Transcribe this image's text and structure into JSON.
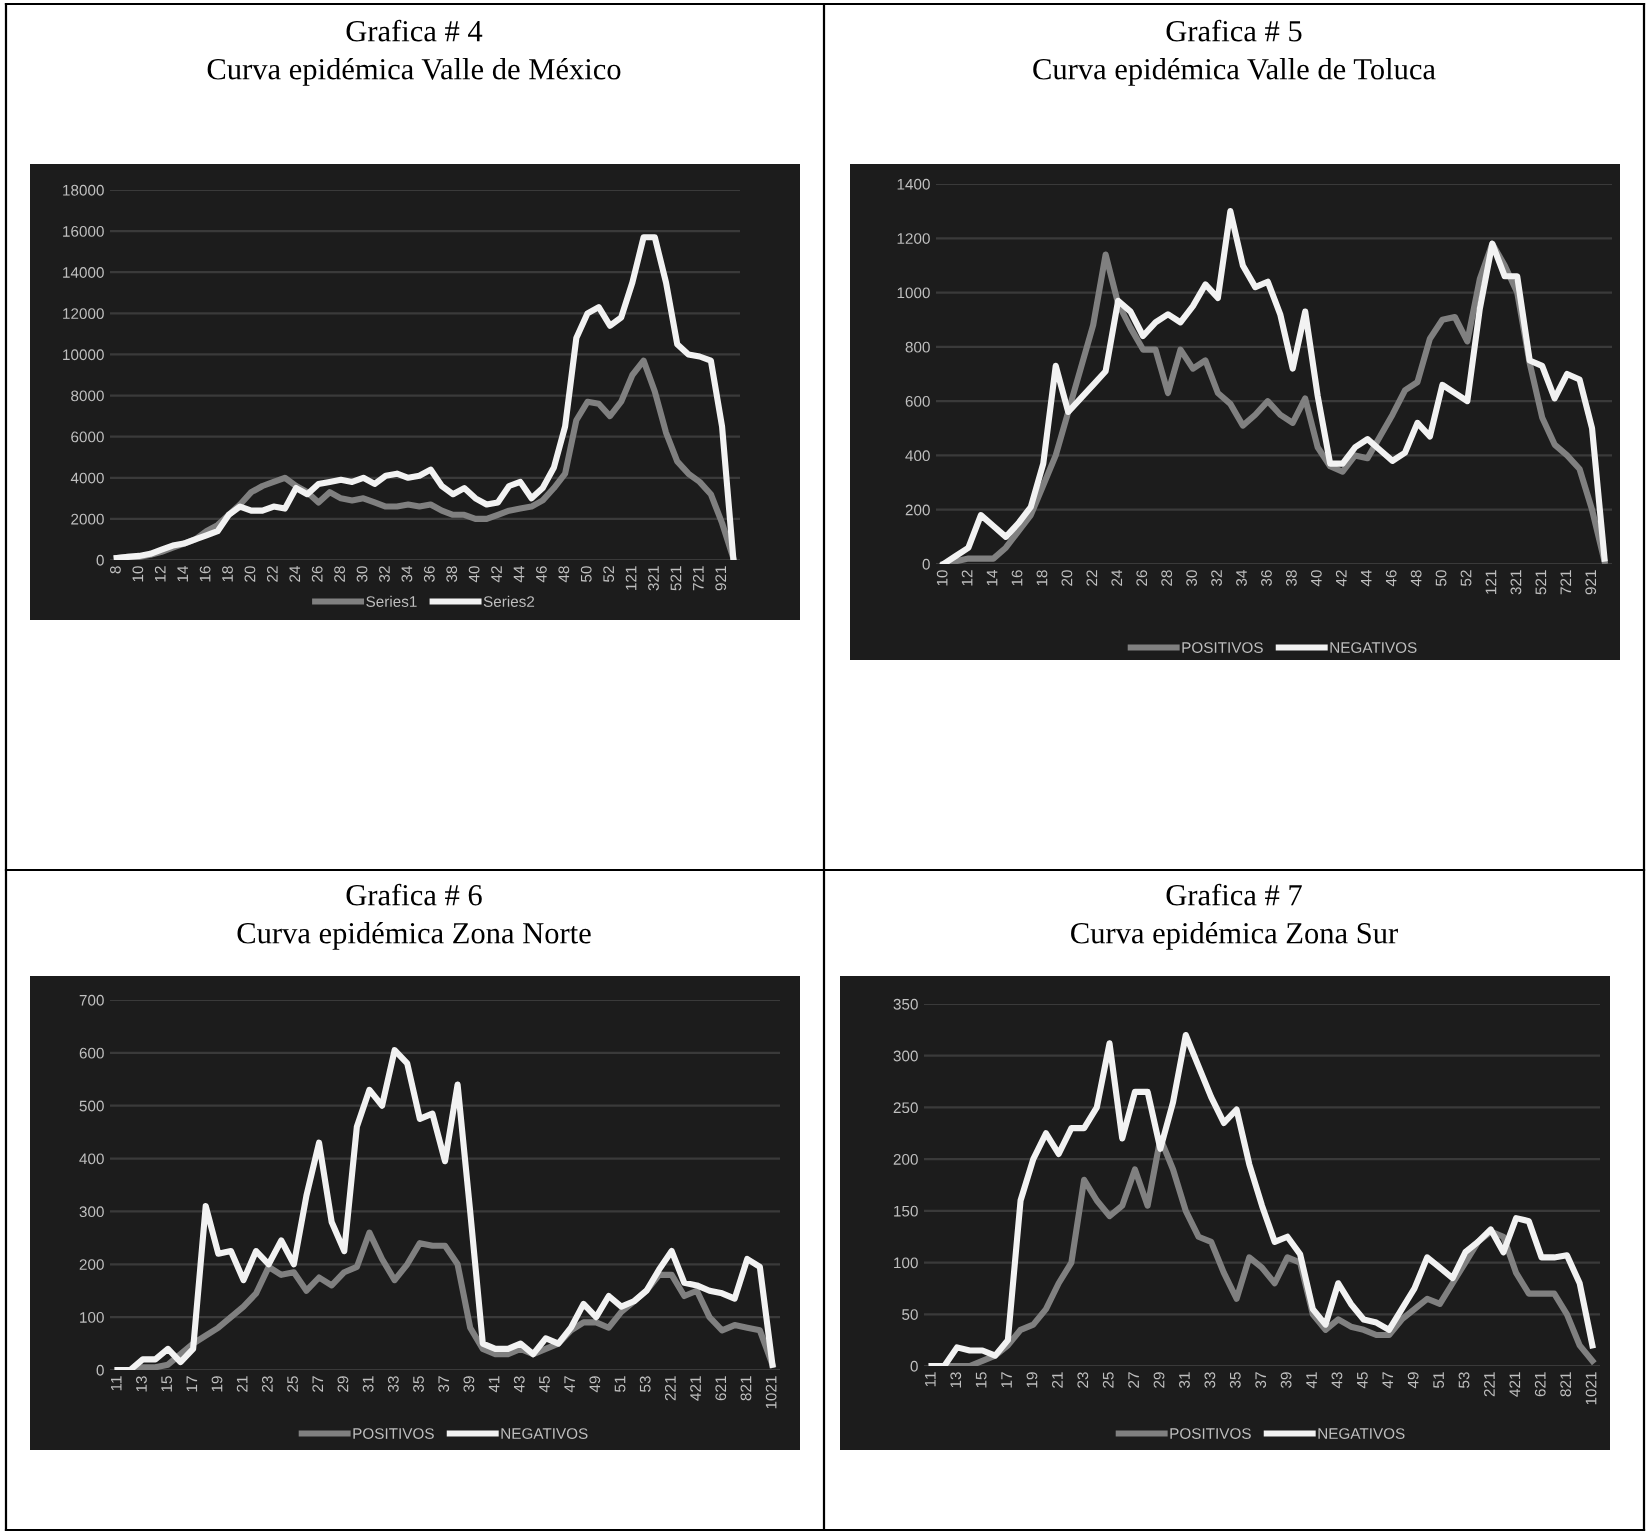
{
  "chart_data": [
    {
      "type": "line",
      "title": "Grafica # 4",
      "subtitle": "Curva epidémica Valle de México",
      "categories": [
        "8",
        null,
        "10",
        null,
        "12",
        null,
        "14",
        null,
        "16",
        null,
        "18",
        null,
        "20",
        null,
        "22",
        null,
        "24",
        null,
        "26",
        null,
        "28",
        null,
        "30",
        null,
        "32",
        null,
        "34",
        null,
        "36",
        null,
        "38",
        null,
        "40",
        null,
        "42",
        null,
        "44",
        null,
        "46",
        null,
        "48",
        null,
        "50",
        null,
        "52",
        null,
        "121",
        null,
        "321",
        null,
        "521",
        null,
        "721",
        null,
        "921",
        null
      ],
      "series": [
        {
          "name": "Series1",
          "color": "#808080",
          "values": [
            100,
            150,
            150,
            250,
            400,
            600,
            800,
            1000,
            1400,
            1700,
            2200,
            2700,
            3300,
            3600,
            3800,
            4000,
            3600,
            3300,
            2800,
            3300,
            3000,
            2900,
            3000,
            2800,
            2600,
            2600,
            2700,
            2600,
            2700,
            2400,
            2200,
            2200,
            2000,
            2000,
            2200,
            2400,
            2500,
            2600,
            2900,
            3500,
            4200,
            6800,
            7700,
            7600,
            7000,
            7700,
            9000,
            9700,
            8200,
            6200,
            4800,
            4200,
            3800,
            3200,
            1800,
            100
          ]
        },
        {
          "name": "Series2",
          "color": "#f2f2f2",
          "values": [
            100,
            150,
            200,
            300,
            500,
            700,
            800,
            1000,
            1200,
            1400,
            2200,
            2600,
            2400,
            2400,
            2600,
            2500,
            3500,
            3200,
            3700,
            3800,
            3900,
            3800,
            4000,
            3700,
            4100,
            4200,
            4000,
            4100,
            4400,
            3600,
            3200,
            3500,
            3000,
            2700,
            2800,
            3600,
            3800,
            3000,
            3500,
            4500,
            6500,
            10800,
            12000,
            12300,
            11400,
            11800,
            13500,
            15700,
            15700,
            13500,
            10500,
            10000,
            9900,
            9700,
            6500,
            100
          ]
        }
      ],
      "ylim": [
        0,
        18000
      ],
      "yticks": [
        0,
        2000,
        4000,
        6000,
        8000,
        10000,
        12000,
        14000,
        16000,
        18000
      ],
      "grid": "y",
      "legend": "bottom"
    },
    {
      "type": "line",
      "title": "Grafica # 5",
      "subtitle": "Curva epidémica Valle de Toluca",
      "categories": [
        "10",
        null,
        "12",
        null,
        "14",
        null,
        "16",
        null,
        "18",
        null,
        "20",
        null,
        "22",
        null,
        "24",
        null,
        "26",
        null,
        "28",
        null,
        "30",
        null,
        "32",
        null,
        "34",
        null,
        "36",
        null,
        "38",
        null,
        "40",
        null,
        "42",
        null,
        "44",
        null,
        "46",
        null,
        "48",
        null,
        "50",
        null,
        "52",
        null,
        "121",
        null,
        "321",
        null,
        "521",
        null,
        "721",
        null,
        "921",
        null
      ],
      "series": [
        {
          "name": "POSITIVOS",
          "color": "#808080",
          "values": [
            0,
            10,
            20,
            20,
            20,
            60,
            120,
            180,
            290,
            400,
            560,
            720,
            880,
            1140,
            960,
            870,
            790,
            790,
            630,
            790,
            720,
            750,
            630,
            590,
            510,
            550,
            600,
            550,
            520,
            610,
            430,
            360,
            340,
            400,
            390,
            470,
            550,
            640,
            670,
            830,
            900,
            910,
            820,
            1050,
            1180,
            1100,
            1000,
            740,
            540,
            440,
            400,
            350,
            200,
            10
          ]
        },
        {
          "name": "NEGATIVOS",
          "color": "#f2f2f2",
          "values": [
            0,
            30,
            60,
            180,
            140,
            100,
            150,
            210,
            370,
            730,
            560,
            610,
            660,
            710,
            970,
            930,
            840,
            890,
            920,
            890,
            950,
            1030,
            980,
            1300,
            1100,
            1020,
            1040,
            920,
            720,
            930,
            620,
            370,
            370,
            430,
            460,
            420,
            380,
            410,
            520,
            470,
            660,
            630,
            600,
            940,
            1180,
            1060,
            1060,
            750,
            730,
            610,
            700,
            680,
            500,
            20
          ]
        }
      ],
      "ylim": [
        0,
        1400
      ],
      "yticks": [
        0,
        200,
        400,
        600,
        800,
        1000,
        1200,
        1400
      ],
      "grid": "y",
      "legend": "bottom"
    },
    {
      "type": "line",
      "title": "Grafica # 6",
      "subtitle": "Curva epidémica Zona Norte",
      "categories": [
        "11",
        null,
        "13",
        null,
        "15",
        null,
        "17",
        null,
        "19",
        null,
        "21",
        null,
        "23",
        null,
        "25",
        null,
        "27",
        null,
        "29",
        null,
        "31",
        null,
        "33",
        null,
        "35",
        null,
        "37",
        null,
        "39",
        null,
        "41",
        null,
        "43",
        null,
        "45",
        null,
        "47",
        null,
        "49",
        null,
        "51",
        null,
        "53",
        null,
        "221",
        null,
        "421",
        null,
        "621",
        null,
        "821",
        null,
        "1021"
      ],
      "series": [
        {
          "name": "POSITIVOS",
          "color": "#808080",
          "values": [
            0,
            0,
            5,
            5,
            10,
            30,
            50,
            65,
            80,
            100,
            120,
            145,
            195,
            180,
            185,
            150,
            175,
            160,
            185,
            195,
            260,
            210,
            170,
            200,
            240,
            235,
            235,
            200,
            80,
            40,
            30,
            30,
            40,
            30,
            40,
            50,
            75,
            90,
            90,
            80,
            110,
            130,
            150,
            180,
            180,
            140,
            150,
            100,
            75,
            85,
            80,
            75,
            10
          ]
        },
        {
          "name": "NEGATIVOS",
          "color": "#f2f2f2",
          "values": [
            0,
            0,
            20,
            20,
            40,
            15,
            40,
            310,
            220,
            225,
            170,
            225,
            200,
            245,
            200,
            330,
            430,
            280,
            225,
            460,
            530,
            500,
            605,
            580,
            475,
            485,
            395,
            540,
            300,
            50,
            40,
            40,
            50,
            30,
            60,
            50,
            80,
            125,
            100,
            140,
            120,
            130,
            150,
            190,
            225,
            165,
            160,
            150,
            145,
            135,
            210,
            195,
            10
          ]
        }
      ],
      "ylim": [
        0,
        700
      ],
      "yticks": [
        0,
        100,
        200,
        300,
        400,
        500,
        600,
        700
      ],
      "grid": "y",
      "legend": "bottom"
    },
    {
      "type": "line",
      "title": "Grafica # 7",
      "subtitle": "Curva epidémica Zona Sur",
      "categories": [
        "11",
        null,
        "13",
        null,
        "15",
        null,
        "17",
        null,
        "19",
        null,
        "21",
        null,
        "23",
        null,
        "25",
        null,
        "27",
        null,
        "29",
        null,
        "31",
        null,
        "33",
        null,
        "35",
        null,
        "37",
        null,
        "39",
        null,
        "41",
        null,
        "43",
        null,
        "45",
        null,
        "47",
        null,
        "49",
        null,
        "51",
        null,
        "53",
        null,
        "221",
        null,
        "421",
        null,
        "621",
        null,
        "821",
        null,
        "1021"
      ],
      "series": [
        {
          "name": "POSITIVOS",
          "color": "#808080",
          "values": [
            0,
            0,
            0,
            0,
            5,
            10,
            20,
            35,
            40,
            55,
            80,
            100,
            180,
            160,
            145,
            155,
            190,
            155,
            220,
            190,
            150,
            125,
            120,
            90,
            65,
            105,
            95,
            80,
            105,
            100,
            50,
            35,
            45,
            38,
            35,
            30,
            30,
            45,
            55,
            65,
            60,
            80,
            100,
            120,
            130,
            125,
            90,
            70,
            70,
            70,
            50,
            20,
            5
          ]
        },
        {
          "name": "NEGATIVOS",
          "color": "#f2f2f2",
          "values": [
            0,
            0,
            18,
            15,
            15,
            10,
            25,
            160,
            200,
            225,
            205,
            230,
            230,
            250,
            312,
            220,
            265,
            265,
            210,
            255,
            320,
            290,
            260,
            235,
            248,
            195,
            155,
            120,
            125,
            108,
            55,
            40,
            80,
            60,
            45,
            42,
            35,
            55,
            75,
            105,
            95,
            85,
            110,
            120,
            132,
            110,
            143,
            140,
            105,
            105,
            107,
            80,
            20
          ]
        }
      ],
      "ylim": [
        0,
        350
      ],
      "yticks": [
        0,
        50,
        100,
        150,
        200,
        250,
        300,
        350
      ],
      "grid": "y",
      "legend": "bottom"
    }
  ]
}
